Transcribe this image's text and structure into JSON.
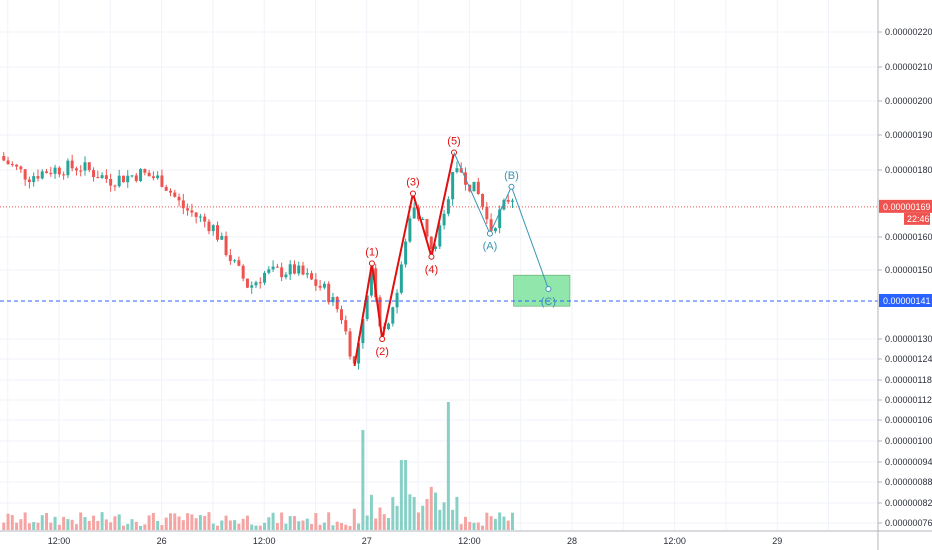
{
  "chart_data": {
    "type": "candlestick",
    "price_axis": {
      "ticks": [
        "0.00000220",
        "0.00000210",
        "0.00000200",
        "0.00000190",
        "0.00000180",
        "0.00000160",
        "0.00000150",
        "0.00000141",
        "0.00000130",
        "0.00000124",
        "0.00000118",
        "0.00000112",
        "0.00000106",
        "0.00000100",
        "0.00000094",
        "0.00000088",
        "0.00000082",
        "0.00000076"
      ],
      "tick_values": [
        2.2,
        2.1,
        2.0,
        1.9,
        1.8,
        1.6,
        1.5,
        1.41,
        1.3,
        1.24,
        1.18,
        1.12,
        1.06,
        1.0,
        0.94,
        0.88,
        0.82,
        0.76
      ],
      "scale_note": "values ×1e-6"
    },
    "time_axis": {
      "labels": [
        "12:00",
        "26",
        "12:00",
        "27",
        "12:00",
        "28",
        "12:00",
        "29"
      ],
      "positions": [
        0,
        1,
        2,
        3,
        4,
        5,
        6,
        7
      ]
    },
    "current_price": {
      "label": "0.00000169",
      "value": 1.69,
      "countdown": "22:46",
      "color": "#ef5350"
    },
    "target_price": {
      "label": "0.00000141",
      "value": 1.41,
      "color": "#2962ff"
    },
    "elliott_impulse": {
      "color": "#e01010",
      "points": [
        {
          "label": "",
          "t": 2.88,
          "p": 1.22
        },
        {
          "label": "(1)",
          "t": 3.05,
          "p": 1.52
        },
        {
          "label": "(2)",
          "t": 3.15,
          "p": 1.3
        },
        {
          "label": "(3)",
          "t": 3.45,
          "p": 1.73
        },
        {
          "label": "(4)",
          "t": 3.63,
          "p": 1.54
        },
        {
          "label": "(5)",
          "t": 3.85,
          "p": 1.85
        }
      ]
    },
    "elliott_correction": {
      "color": "#3b95b5",
      "points": [
        {
          "label": "",
          "t": 3.85,
          "p": 1.85
        },
        {
          "label": "(A)",
          "t": 4.2,
          "p": 1.61
        },
        {
          "label": "(B)",
          "t": 4.41,
          "p": 1.75
        },
        {
          "label": "(C)",
          "t": 4.77,
          "p": 1.445
        }
      ]
    },
    "target_zone": {
      "label": "(C)",
      "t_start": 4.43,
      "t_end": 4.98,
      "p_top": 1.485,
      "p_bottom": 1.395,
      "color": "#7ee39d"
    },
    "colors": {
      "up": "#26a69a",
      "down": "#ef5350",
      "vol_up": "#88d0c6",
      "vol_down": "#f4a5a3",
      "grid": "#f0f3fa"
    }
  }
}
